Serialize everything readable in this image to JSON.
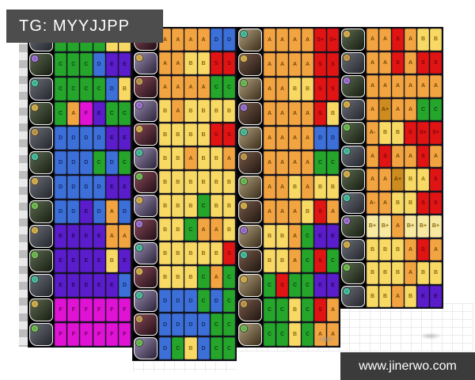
{
  "header": {
    "title": "TG: MYYJJPP"
  },
  "footer": {
    "site": "www.jinerwo.com"
  },
  "grades": {
    "S+": {
      "bg": "#e11414",
      "fg": "#7e0606"
    },
    "S": {
      "bg": "#e11414",
      "fg": "#7e0606"
    },
    "A+": {
      "bg": "#cd8c20",
      "fg": "#6e4200"
    },
    "A": {
      "bg": "#f2a440",
      "fg": "#77470a"
    },
    "A-": {
      "bg": "#f2a440",
      "fg": "#77470a"
    },
    "B+": {
      "bg": "#f8e9a0",
      "fg": "#8a6c12"
    },
    "B": {
      "bg": "#f8d964",
      "fg": "#8a6c12"
    },
    "C": {
      "bg": "#25a62b",
      "fg": "#0c4a10"
    },
    "D": {
      "bg": "#3c70d8",
      "fg": "#132f6e"
    },
    "E": {
      "bg": "#5b1dcb",
      "fg": "#26085e"
    },
    "F": {
      "bg": "#e013d4",
      "fg": "#67055f"
    }
  },
  "panels": [
    {
      "name": "panel-1",
      "rows": [
        {
          "badge": "#c9a23a",
          "grades": [
            "C",
            "C",
            "C",
            "C",
            "B",
            "B"
          ]
        },
        {
          "badge": "#8f5fc6",
          "grades": [
            "C",
            "C",
            "C",
            "D",
            "E",
            "E"
          ]
        },
        {
          "badge": "#35b08d",
          "grades": [
            "C",
            "C",
            "C",
            "C",
            "D",
            "B"
          ]
        },
        {
          "badge": "#c9a23a",
          "grades": [
            "C",
            "A",
            "F",
            "E",
            "C",
            "C"
          ]
        },
        {
          "badge": "#b58a3a",
          "grades": [
            "D",
            "D",
            "D",
            "D",
            "E",
            "E"
          ]
        },
        {
          "badge": "#35b08d",
          "grades": [
            "D",
            "D",
            "D",
            "C",
            "D",
            "C"
          ]
        },
        {
          "badge": "#c9a23a",
          "grades": [
            "D",
            "D",
            "D",
            "D",
            "E",
            "E"
          ]
        },
        {
          "badge": "#5fae3f",
          "grades": [
            "D",
            "D",
            "E",
            "D",
            "A",
            "D"
          ]
        },
        {
          "badge": "#c9a23a",
          "grades": [
            "E",
            "E",
            "E",
            "E",
            "A",
            "A"
          ]
        },
        {
          "badge": "#5fae3f",
          "grades": [
            "E",
            "E",
            "E",
            "E",
            "B",
            "E"
          ]
        },
        {
          "badge": "#35b08d",
          "grades": [
            "E",
            "E",
            "E",
            "E",
            "E",
            "D"
          ]
        },
        {
          "badge": "#c9a23a",
          "grades": [
            "F",
            "F",
            "F",
            "F",
            "F",
            "F"
          ]
        },
        {
          "badge": "#5fae3f",
          "grades": [
            "F",
            "F",
            "F",
            "F",
            "F",
            "F"
          ]
        }
      ]
    },
    {
      "name": "panel-2",
      "rows": [
        {
          "badge": "#5fae3f",
          "grades": [
            "A",
            "A",
            "A",
            "A",
            "D",
            "D"
          ]
        },
        {
          "badge": "#c9a23a",
          "grades": [
            "A",
            "A",
            "B",
            "B",
            "S",
            "S"
          ]
        },
        {
          "badge": "#b58a3a",
          "grades": [
            "A",
            "A",
            "A",
            "A",
            "C",
            "C"
          ]
        },
        {
          "badge": "#8f5fc6",
          "grades": [
            "B",
            "A",
            "B",
            "B",
            "B",
            "B"
          ]
        },
        {
          "badge": "#c9a23a",
          "grades": [
            "B",
            "B",
            "B",
            "B",
            "S",
            "S"
          ]
        },
        {
          "badge": "#35b08d",
          "grades": [
            "B",
            "B",
            "A",
            "B",
            "B",
            "A"
          ]
        },
        {
          "badge": "#5fae3f",
          "grades": [
            "B",
            "B",
            "B",
            "B",
            "B",
            "B"
          ]
        },
        {
          "badge": "#c9a23a",
          "grades": [
            "B",
            "B",
            "B",
            "C",
            "B",
            "B"
          ]
        },
        {
          "badge": "#8f5fc6",
          "grades": [
            "B",
            "B",
            "C",
            "A",
            "A",
            "B"
          ]
        },
        {
          "badge": "#35b08d",
          "grades": [
            "B",
            "B",
            "B",
            "B",
            "B",
            "S"
          ]
        },
        {
          "badge": "#c9a23a",
          "grades": [
            "B",
            "B",
            "B",
            "C",
            "A",
            "C"
          ]
        },
        {
          "badge": "#35b08d",
          "grades": [
            "D",
            "D",
            "D",
            "C",
            "D",
            "C"
          ]
        },
        {
          "badge": "#b58a3a",
          "grades": [
            "D",
            "D",
            "D",
            "D",
            "C",
            "C"
          ]
        },
        {
          "badge": "#5fae3f",
          "grades": [
            "D",
            "C",
            "B",
            "D",
            "C",
            "C"
          ]
        }
      ]
    },
    {
      "name": "panel-3",
      "rows": [
        {
          "badge": "#35b08d",
          "grades": [
            "A",
            "A",
            "A",
            "A",
            "S+",
            "S+"
          ]
        },
        {
          "badge": "#c9a23a",
          "grades": [
            "A",
            "A",
            "A",
            "A",
            "S",
            "S"
          ]
        },
        {
          "badge": "#5fae3f",
          "grades": [
            "A",
            "A",
            "B",
            "B",
            "S",
            "S"
          ]
        },
        {
          "badge": "#8f5fc6",
          "grades": [
            "A",
            "A",
            "A",
            "A",
            "S",
            "B"
          ]
        },
        {
          "badge": "#35b08d",
          "grades": [
            "A",
            "A",
            "A",
            "A",
            "D",
            "D"
          ]
        },
        {
          "badge": "#b58a3a",
          "grades": [
            "A",
            "A",
            "A",
            "A",
            "C",
            "C"
          ]
        },
        {
          "badge": "#5fae3f",
          "grades": [
            "A",
            "A",
            "B",
            "A",
            "B",
            "B"
          ]
        },
        {
          "badge": "#c9a23a",
          "grades": [
            "A",
            "A",
            "A",
            "B",
            "S",
            "A"
          ]
        },
        {
          "badge": "#8f5fc6",
          "grades": [
            "B",
            "B",
            "A",
            "C",
            "E",
            "E"
          ]
        },
        {
          "badge": "#35b08d",
          "grades": [
            "B",
            "B",
            "A",
            "C",
            "S",
            "C"
          ]
        },
        {
          "badge": "#c9a23a",
          "grades": [
            "C",
            "S",
            "C",
            "C",
            "E",
            "E"
          ]
        },
        {
          "badge": "#b58a3a",
          "grades": [
            "C",
            "C",
            "B",
            "C",
            "S",
            "A"
          ]
        },
        {
          "badge": "#5fae3f",
          "grades": [
            "C",
            "C",
            "B",
            "C",
            "A",
            "A"
          ]
        }
      ]
    },
    {
      "name": "panel-4",
      "rows": [
        {
          "badge": "#c9a23a",
          "grades": [
            "A",
            "A",
            "S",
            "A",
            "B",
            "B"
          ]
        },
        {
          "badge": "#b58a3a",
          "grades": [
            "A",
            "A",
            "S",
            "A",
            "S",
            "S"
          ]
        },
        {
          "badge": "#8f5fc6",
          "grades": [
            "A",
            "A",
            "A",
            "A",
            "A",
            "A"
          ]
        },
        {
          "badge": "#c9a23a",
          "grades": [
            "A",
            "A+",
            "A",
            "A",
            "C",
            "C"
          ]
        },
        {
          "badge": "#5fae3f",
          "grades": [
            "A-",
            "B",
            "B",
            "S",
            "S+",
            "S+"
          ]
        },
        {
          "badge": "#35b08d",
          "grades": [
            "A",
            "S",
            "A",
            "A",
            "S",
            "A"
          ]
        },
        {
          "badge": "#c9a23a",
          "grades": [
            "A",
            "A",
            "A+",
            "B",
            "A|B",
            "S"
          ]
        },
        {
          "badge": "#35b08d",
          "grades": [
            "A-",
            "A",
            "B",
            "B",
            "S",
            "S"
          ]
        },
        {
          "badge": "#8f5fc6",
          "grades": [
            "B+",
            "B+",
            "A",
            "B+",
            "B+",
            "B+"
          ]
        },
        {
          "badge": "#c9a23a",
          "grades": [
            "B",
            "B",
            "B",
            "A",
            "S",
            "A"
          ]
        },
        {
          "badge": "#5fae3f",
          "grades": [
            "B",
            "B",
            "B",
            "A",
            "B",
            "B"
          ]
        },
        {
          "badge": "#35b08d",
          "grades": [
            "B",
            "B",
            "A",
            "B",
            "E",
            "E"
          ]
        }
      ]
    }
  ]
}
